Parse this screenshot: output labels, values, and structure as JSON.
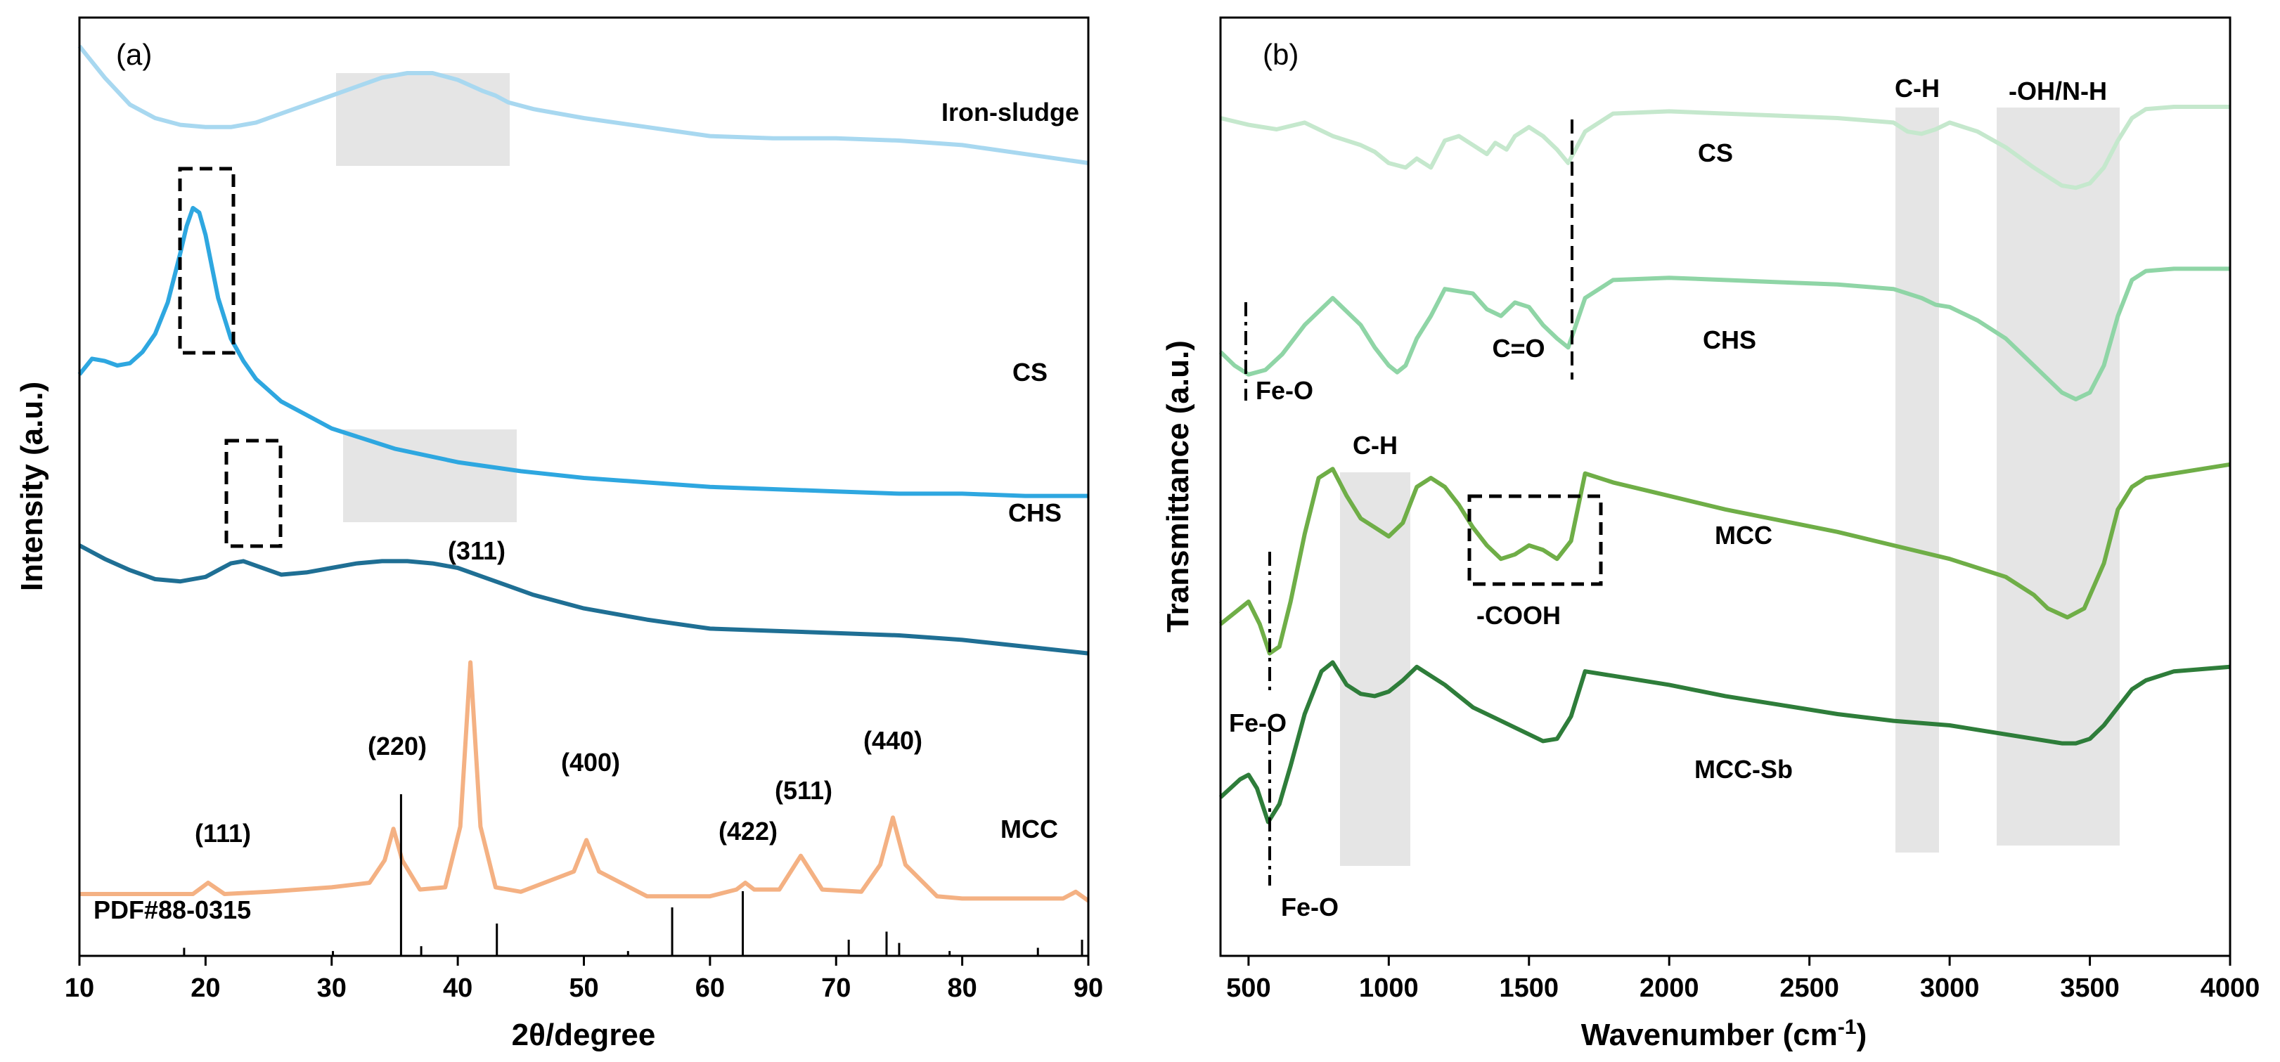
{
  "chart_data": [
    {
      "type": "line",
      "panel_label": "(a)",
      "xlabel": "2θ/degree",
      "ylabel": "Intensity (a.u.)",
      "xlim": [
        10,
        90
      ],
      "xticks": [
        10,
        20,
        30,
        40,
        50,
        60,
        70,
        80,
        90
      ],
      "series": [
        {
          "name": "Iron-sludge",
          "color": "#a8d8f0",
          "x": [
            10,
            11,
            12,
            14,
            16,
            18,
            20,
            22,
            24,
            26,
            28,
            30,
            32,
            34,
            36,
            38,
            40,
            42,
            43,
            44,
            46,
            50,
            55,
            60,
            65,
            70,
            75,
            80,
            85,
            90
          ],
          "y": [
            3.92,
            3.85,
            3.78,
            3.66,
            3.6,
            3.57,
            3.56,
            3.56,
            3.58,
            3.62,
            3.66,
            3.7,
            3.74,
            3.78,
            3.8,
            3.8,
            3.77,
            3.72,
            3.7,
            3.67,
            3.64,
            3.6,
            3.56,
            3.52,
            3.51,
            3.51,
            3.5,
            3.48,
            3.44,
            3.4
          ]
        },
        {
          "name": "CS",
          "color": "#2ea7e0",
          "x": [
            10,
            11,
            12,
            13,
            14,
            15,
            16,
            17,
            18,
            18.5,
            19,
            19.5,
            20,
            20.5,
            21,
            22,
            23,
            24,
            26,
            28,
            30,
            35,
            40,
            45,
            50,
            55,
            60,
            65,
            70,
            75,
            80,
            85,
            90
          ],
          "y": [
            2.46,
            2.53,
            2.52,
            2.5,
            2.51,
            2.56,
            2.64,
            2.78,
            3.0,
            3.12,
            3.2,
            3.18,
            3.08,
            2.94,
            2.8,
            2.62,
            2.52,
            2.44,
            2.34,
            2.28,
            2.22,
            2.13,
            2.07,
            2.03,
            2.0,
            1.98,
            1.96,
            1.95,
            1.94,
            1.93,
            1.93,
            1.92,
            1.92
          ]
        },
        {
          "name": "CHS",
          "color": "#1f6f94",
          "x": [
            10,
            12,
            14,
            16,
            18,
            20,
            21,
            22,
            23,
            24,
            25,
            26,
            28,
            30,
            32,
            34,
            36,
            38,
            40,
            42,
            44,
            46,
            50,
            55,
            60,
            65,
            70,
            75,
            80,
            85,
            90
          ],
          "y": [
            1.7,
            1.64,
            1.59,
            1.55,
            1.54,
            1.56,
            1.59,
            1.62,
            1.63,
            1.61,
            1.59,
            1.57,
            1.58,
            1.6,
            1.62,
            1.63,
            1.63,
            1.62,
            1.6,
            1.56,
            1.52,
            1.48,
            1.42,
            1.37,
            1.33,
            1.32,
            1.31,
            1.3,
            1.28,
            1.25,
            1.22
          ]
        },
        {
          "name": "MCC",
          "color": "#f4b183",
          "x": [
            10,
            15,
            19,
            20.2,
            21.5,
            25,
            30,
            33,
            34.2,
            34.9,
            35.6,
            37,
            39,
            40.2,
            41.0,
            41.8,
            43,
            45,
            49.2,
            50.2,
            51.2,
            55,
            60,
            62.1,
            62.8,
            63.5,
            65.5,
            67.2,
            68.9,
            72,
            73.5,
            74.5,
            75.5,
            78,
            80,
            85,
            88,
            89,
            90
          ],
          "y": [
            0.15,
            0.15,
            0.15,
            0.2,
            0.15,
            0.16,
            0.18,
            0.2,
            0.3,
            0.44,
            0.3,
            0.17,
            0.18,
            0.45,
            1.18,
            0.45,
            0.18,
            0.16,
            0.25,
            0.39,
            0.25,
            0.14,
            0.14,
            0.17,
            0.2,
            0.17,
            0.17,
            0.32,
            0.17,
            0.16,
            0.28,
            0.49,
            0.28,
            0.14,
            0.13,
            0.13,
            0.13,
            0.16,
            0.12
          ]
        }
      ],
      "reference": {
        "label": "PDF#88-0315",
        "x": [
          18.3,
          30.1,
          35.5,
          37.1,
          43.1,
          53.5,
          57.0,
          62.6,
          71.0,
          74.0,
          75.0,
          79.0,
          86.0,
          89.5
        ],
        "h": [
          0.05,
          0.03,
          1.0,
          0.06,
          0.2,
          0.03,
          0.3,
          0.4,
          0.1,
          0.15,
          0.08,
          0.03,
          0.05,
          0.1
        ]
      },
      "peak_labels": [
        "(111)",
        "(220)",
        "(311)",
        "(400)",
        "(422)",
        "(511)",
        "(440)"
      ]
    },
    {
      "type": "line",
      "panel_label": "(b)",
      "xlabel": "Wavenumber (cm",
      "xlabel_sup": "-1",
      "xlabel_end": ")",
      "ylabel": "Transmittance (a.u.)",
      "xlim": [
        400,
        4000
      ],
      "xticks": [
        500,
        1000,
        1500,
        2000,
        2500,
        3000,
        3500,
        4000
      ],
      "series": [
        {
          "name": "CS",
          "color": "#c5e8cd",
          "x": [
            400,
            500,
            600,
            700,
            800,
            900,
            950,
            1000,
            1060,
            1100,
            1150,
            1200,
            1250,
            1300,
            1350,
            1380,
            1420,
            1450,
            1500,
            1550,
            1600,
            1640,
            1700,
            1800,
            2000,
            2200,
            2400,
            2600,
            2800,
            2850,
            2900,
            2950,
            3000,
            3100,
            3200,
            3300,
            3400,
            3450,
            3500,
            3550,
            3600,
            3650,
            3700,
            3800,
            4000
          ],
          "y": [
            3.6,
            3.57,
            3.55,
            3.58,
            3.52,
            3.48,
            3.45,
            3.4,
            3.38,
            3.42,
            3.38,
            3.5,
            3.52,
            3.48,
            3.44,
            3.49,
            3.46,
            3.52,
            3.56,
            3.52,
            3.46,
            3.4,
            3.54,
            3.62,
            3.63,
            3.62,
            3.61,
            3.6,
            3.58,
            3.54,
            3.53,
            3.55,
            3.58,
            3.54,
            3.47,
            3.38,
            3.3,
            3.29,
            3.31,
            3.38,
            3.5,
            3.6,
            3.64,
            3.65,
            3.65
          ]
        },
        {
          "name": "CHS",
          "color": "#8fd5a6",
          "x": [
            400,
            450,
            500,
            560,
            620,
            700,
            800,
            850,
            900,
            950,
            1000,
            1030,
            1060,
            1100,
            1150,
            1200,
            1300,
            1350,
            1400,
            1450,
            1500,
            1550,
            1600,
            1640,
            1700,
            1800,
            2000,
            2200,
            2400,
            2600,
            2800,
            2900,
            2950,
            3000,
            3100,
            3200,
            3300,
            3400,
            3450,
            3500,
            3550,
            3600,
            3650,
            3700,
            3800,
            4000
          ],
          "y": [
            2.56,
            2.5,
            2.46,
            2.48,
            2.55,
            2.68,
            2.8,
            2.74,
            2.68,
            2.58,
            2.5,
            2.47,
            2.5,
            2.62,
            2.72,
            2.84,
            2.82,
            2.75,
            2.72,
            2.78,
            2.76,
            2.68,
            2.62,
            2.58,
            2.8,
            2.88,
            2.89,
            2.88,
            2.87,
            2.86,
            2.84,
            2.8,
            2.77,
            2.76,
            2.7,
            2.62,
            2.5,
            2.38,
            2.35,
            2.38,
            2.5,
            2.72,
            2.88,
            2.92,
            2.93,
            2.93
          ]
        },
        {
          "name": "MCC",
          "color": "#6fae47",
          "x": [
            400,
            470,
            500,
            540,
            575,
            610,
            650,
            700,
            750,
            800,
            850,
            900,
            950,
            1000,
            1050,
            1100,
            1150,
            1200,
            1250,
            1300,
            1350,
            1400,
            1450,
            1500,
            1550,
            1600,
            1650,
            1700,
            1800,
            2000,
            2200,
            2400,
            2600,
            2800,
            3000,
            3100,
            3200,
            3300,
            3350,
            3420,
            3480,
            3550,
            3600,
            3650,
            3700,
            3800,
            4000
          ],
          "y": [
            1.35,
            1.42,
            1.45,
            1.35,
            1.22,
            1.25,
            1.45,
            1.75,
            2.0,
            2.04,
            1.92,
            1.82,
            1.78,
            1.74,
            1.8,
            1.96,
            2.0,
            1.96,
            1.88,
            1.78,
            1.7,
            1.64,
            1.66,
            1.7,
            1.68,
            1.64,
            1.72,
            2.02,
            1.98,
            1.92,
            1.86,
            1.81,
            1.76,
            1.7,
            1.64,
            1.6,
            1.56,
            1.48,
            1.42,
            1.38,
            1.42,
            1.62,
            1.86,
            1.96,
            2.0,
            2.02,
            2.06
          ]
        },
        {
          "name": "MCC-Sb",
          "color": "#2e7d3a",
          "x": [
            400,
            470,
            500,
            530,
            570,
            610,
            650,
            700,
            760,
            800,
            850,
            900,
            950,
            1000,
            1050,
            1100,
            1150,
            1200,
            1300,
            1400,
            1500,
            1550,
            1600,
            1650,
            1700,
            1800,
            2000,
            2200,
            2400,
            2600,
            2800,
            3000,
            3100,
            3200,
            3300,
            3400,
            3450,
            3500,
            3550,
            3600,
            3650,
            3700,
            3800,
            4000
          ],
          "y": [
            0.58,
            0.66,
            0.68,
            0.62,
            0.47,
            0.55,
            0.72,
            0.95,
            1.14,
            1.18,
            1.08,
            1.04,
            1.03,
            1.05,
            1.1,
            1.16,
            1.12,
            1.08,
            0.98,
            0.92,
            0.86,
            0.83,
            0.84,
            0.94,
            1.14,
            1.12,
            1.08,
            1.03,
            0.99,
            0.95,
            0.92,
            0.9,
            0.88,
            0.86,
            0.84,
            0.82,
            0.82,
            0.84,
            0.9,
            0.98,
            1.06,
            1.1,
            1.14,
            1.16
          ]
        }
      ],
      "band_labels": [
        "C-H",
        "-OH/N-H",
        "C-H"
      ],
      "annotations": [
        "C=O",
        "Fe-O",
        "-COOH",
        "Fe-O",
        "Fe-O"
      ]
    }
  ]
}
